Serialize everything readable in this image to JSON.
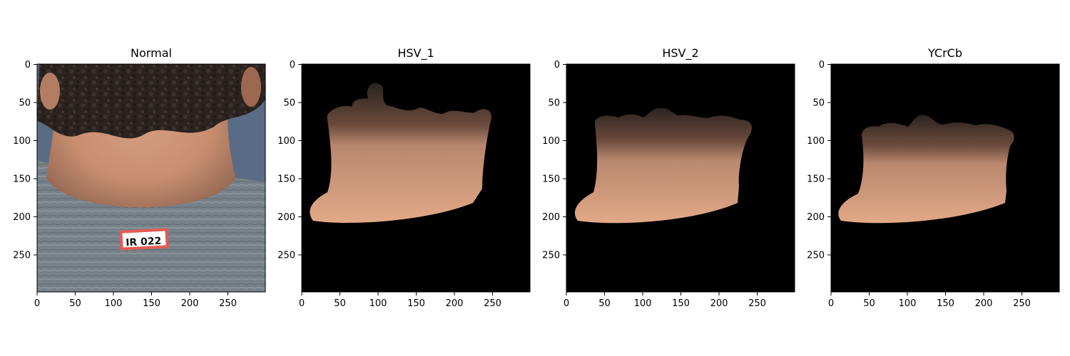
{
  "figure": {
    "panels": [
      {
        "title": "Normal",
        "x_ticks": [
          "0",
          "50",
          "100",
          "150",
          "200",
          "250"
        ],
        "y_ticks": [
          "0",
          "50",
          "100",
          "150",
          "200",
          "250"
        ]
      },
      {
        "title": "HSV_1",
        "x_ticks": [
          "0",
          "50",
          "100",
          "150",
          "200",
          "250"
        ],
        "y_ticks": [
          "0",
          "50",
          "100",
          "150",
          "200",
          "250"
        ]
      },
      {
        "title": "HSV_2",
        "x_ticks": [
          "0",
          "50",
          "100",
          "150",
          "200",
          "250"
        ],
        "y_ticks": [
          "0",
          "50",
          "100",
          "150",
          "200",
          "250"
        ]
      },
      {
        "title": "YCrCb",
        "x_ticks": [
          "0",
          "50",
          "100",
          "150",
          "200",
          "250"
        ],
        "y_ticks": [
          "0",
          "50",
          "100",
          "150",
          "200",
          "250"
        ]
      }
    ],
    "photo": {
      "label_text": "IR 022"
    },
    "colors": {
      "background_mask": "#000000",
      "skin": "#d0977a",
      "hair": "#2b231f",
      "shirt": "#7c858a",
      "wall": "#5a6b86",
      "label_outline": "#e45b56"
    }
  }
}
